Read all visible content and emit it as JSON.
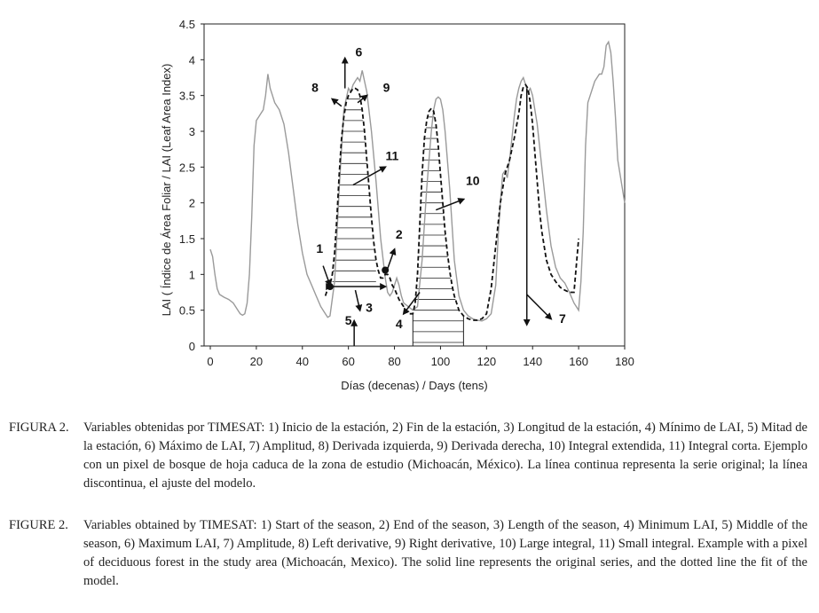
{
  "chart_data": {
    "type": "line",
    "title": "",
    "xlabel": "Días (decenas) / Days (tens)",
    "ylabel": "LAI ( Índice de Área Foliar / LAI (Leaf Area Index)",
    "xlim": [
      0,
      180
    ],
    "ylim": [
      0,
      4.5
    ],
    "xticks": [
      "0",
      "20",
      "40",
      "60",
      "80",
      "100",
      "120",
      "140",
      "160",
      "180"
    ],
    "yticks": [
      "0",
      "0.5",
      "1",
      "1.5",
      "2",
      "2.5",
      "3",
      "3.5",
      "4",
      "4.5"
    ],
    "grid": false,
    "legend": "none",
    "series": [
      {
        "style": "solid",
        "color": "#9a9a9a",
        "x": [
          0,
          1,
          2,
          3,
          4,
          6,
          8,
          10,
          12,
          13,
          14,
          15,
          16,
          17,
          18,
          19,
          20,
          21,
          22,
          23,
          24,
          25,
          26,
          27,
          28,
          29,
          30,
          32,
          34,
          36,
          38,
          40,
          42,
          44,
          46,
          48,
          50,
          51,
          52,
          54,
          56,
          58,
          60,
          61,
          62,
          63,
          64,
          65,
          66,
          67,
          68,
          70,
          72,
          74,
          76,
          77,
          78,
          79,
          80,
          81,
          82,
          83,
          84,
          86,
          88,
          90,
          92,
          94,
          96,
          97,
          98,
          99,
          100,
          101,
          102,
          104,
          106,
          108,
          110,
          112,
          114,
          116,
          118,
          120,
          122,
          124,
          125,
          126,
          127,
          128,
          129,
          130,
          131,
          132,
          133,
          134,
          135,
          136,
          137,
          138,
          139,
          140,
          142,
          144,
          146,
          148,
          150,
          152,
          154,
          156,
          158,
          159,
          160,
          161,
          162,
          163,
          164,
          165,
          166,
          167,
          168,
          169,
          170,
          171,
          172,
          173,
          174,
          175,
          176,
          177,
          178,
          179,
          180
        ],
        "y": [
          1.35,
          1.25,
          1.0,
          0.8,
          0.72,
          0.68,
          0.65,
          0.6,
          0.5,
          0.45,
          0.43,
          0.45,
          0.6,
          1.0,
          1.8,
          2.8,
          3.15,
          3.2,
          3.25,
          3.3,
          3.5,
          3.8,
          3.6,
          3.5,
          3.4,
          3.35,
          3.3,
          3.1,
          2.7,
          2.2,
          1.7,
          1.3,
          1.0,
          0.85,
          0.7,
          0.55,
          0.45,
          0.4,
          0.42,
          0.9,
          2.2,
          3.3,
          3.6,
          3.55,
          3.65,
          3.7,
          3.75,
          3.7,
          3.85,
          3.7,
          3.55,
          3.0,
          2.3,
          1.5,
          0.95,
          0.75,
          0.7,
          0.75,
          0.85,
          0.95,
          0.85,
          0.7,
          0.6,
          0.55,
          0.5,
          0.55,
          1.2,
          2.2,
          3.0,
          3.3,
          3.45,
          3.48,
          3.45,
          3.3,
          3.0,
          2.2,
          1.2,
          0.7,
          0.5,
          0.42,
          0.38,
          0.36,
          0.35,
          0.38,
          0.45,
          0.85,
          1.5,
          2.0,
          2.4,
          2.45,
          2.35,
          2.6,
          2.9,
          3.2,
          3.45,
          3.6,
          3.7,
          3.75,
          3.65,
          3.55,
          3.6,
          3.5,
          3.1,
          2.5,
          1.9,
          1.4,
          1.1,
          0.95,
          0.88,
          0.75,
          0.6,
          0.55,
          0.5,
          0.9,
          1.6,
          2.8,
          3.4,
          3.5,
          3.6,
          3.7,
          3.75,
          3.8,
          3.8,
          3.9,
          4.2,
          4.25,
          4.1,
          3.7,
          3.2,
          2.6,
          2.4,
          2.2,
          2.0
        ]
      },
      {
        "style": "dashed",
        "color": "#111111",
        "x": [
          50,
          51,
          52,
          53,
          54,
          55,
          56,
          57,
          58,
          59,
          60,
          61,
          62,
          63,
          64,
          65,
          66,
          67,
          68,
          69,
          70,
          71,
          72,
          73,
          74,
          75,
          76,
          77,
          78,
          79,
          80,
          82,
          84,
          86,
          88,
          89,
          90,
          91,
          92,
          93,
          94,
          95,
          96,
          97,
          98,
          99,
          100,
          101,
          102,
          103,
          104,
          105,
          106,
          107,
          108,
          110,
          112,
          114,
          116,
          118,
          120,
          122,
          124,
          126,
          128,
          130,
          132,
          134,
          135,
          136,
          137,
          138,
          139,
          140,
          141,
          142,
          143,
          144,
          146,
          148,
          150,
          152,
          154,
          156,
          158,
          160
        ],
        "y": [
          0.7,
          0.8,
          0.85,
          1.0,
          1.3,
          1.8,
          2.4,
          2.9,
          3.2,
          3.4,
          3.5,
          3.55,
          3.6,
          3.6,
          3.58,
          3.5,
          3.3,
          3.0,
          2.6,
          2.2,
          1.8,
          1.45,
          1.2,
          1.05,
          0.95,
          0.95,
          1.0,
          1.0,
          0.95,
          0.85,
          0.8,
          0.65,
          0.55,
          0.45,
          0.45,
          0.6,
          1.0,
          1.7,
          2.4,
          2.9,
          3.15,
          3.28,
          3.32,
          3.28,
          3.1,
          2.8,
          2.4,
          2.0,
          1.6,
          1.3,
          1.05,
          0.85,
          0.7,
          0.6,
          0.5,
          0.42,
          0.38,
          0.36,
          0.36,
          0.38,
          0.45,
          0.8,
          1.4,
          2.0,
          2.4,
          2.6,
          2.9,
          3.25,
          3.5,
          3.62,
          3.65,
          3.6,
          3.4,
          3.1,
          2.7,
          2.3,
          1.9,
          1.6,
          1.2,
          1.0,
          0.9,
          0.82,
          0.78,
          0.75,
          0.75,
          1.5
        ]
      }
    ],
    "annotations": [
      "1",
      "2",
      "3",
      "4",
      "5",
      "6",
      "7",
      "8",
      "9",
      "10",
      "11"
    ]
  },
  "caption": {
    "es": {
      "lead": "FIGURA 2.",
      "text": "Variables obtenidas por TIMESAT: 1) Inicio de la estación, 2) Fin de la estación, 3) Longitud de la estación, 4) Mínimo de LAI, 5) Mitad de la estación, 6) Máximo de LAI, 7) Amplitud, 8) Derivada izquierda, 9) Derivada derecha, 10) Integral extendida, 11) Integral corta. Ejemplo con un pixel de bosque de hoja caduca de la zona de estudio (Michoacán, México). La línea continua representa la serie original; la línea discontinua, el ajuste del modelo."
    },
    "en": {
      "lead": "FIGURE 2.",
      "text": "Variables obtained by TIMESAT: 1) Start of the season, 2) End of the season, 3) Length of the season, 4) Minimum LAI, 5) Middle of the season, 6) Maximum LAI, 7) Amplitude, 8) Left derivative, 9) Right derivative, 10) Large integral, 11) Small integral. Example with a pixel of deciduous forest in the study area (Michoacán, Mexico). The solid line represents the original series, and the dotted line the fit of the model."
    }
  }
}
